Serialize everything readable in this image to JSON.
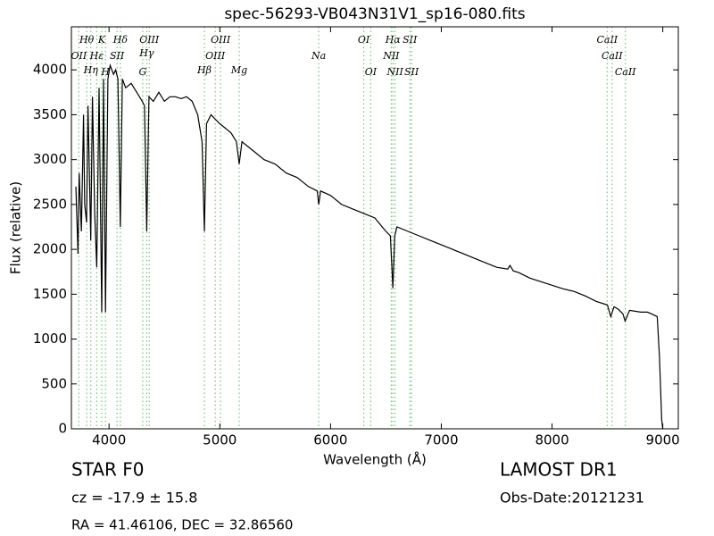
{
  "chart_data": {
    "type": "line",
    "title": "spec-56293-VB043N31V1_sp16-080.fits",
    "x_label": "Wavelength (Å)",
    "y_label": "Flux (relative)",
    "xlim": [
      3660,
      9140
    ],
    "ylim": [
      0,
      4480
    ],
    "xticks": [
      4000,
      5000,
      6000,
      7000,
      8000,
      9000
    ],
    "yticks": [
      0,
      500,
      1000,
      1500,
      2000,
      2500,
      3000,
      3500,
      4000
    ],
    "series": [
      {
        "color": "#000000",
        "x": [
          3700,
          3720,
          3730,
          3750,
          3770,
          3780,
          3797,
          3810,
          3835,
          3850,
          3870,
          3889,
          3910,
          3934,
          3950,
          3968,
          3990,
          4010,
          4040,
          4060,
          4080,
          4102,
          4120,
          4150,
          4200,
          4250,
          4300,
          4320,
          4340,
          4360,
          4400,
          4450,
          4500,
          4550,
          4600,
          4650,
          4700,
          4750,
          4800,
          4840,
          4861,
          4880,
          4920,
          4960,
          5000,
          5050,
          5100,
          5150,
          5175,
          5200,
          5300,
          5400,
          5500,
          5600,
          5700,
          5800,
          5880,
          5893,
          5910,
          6000,
          6100,
          6200,
          6300,
          6400,
          6500,
          6540,
          6563,
          6580,
          6600,
          6700,
          6800,
          6900,
          7000,
          7100,
          7200,
          7300,
          7400,
          7500,
          7600,
          7620,
          7650,
          7700,
          7800,
          7900,
          8000,
          8100,
          8200,
          8300,
          8400,
          8500,
          8530,
          8560,
          8600,
          8640,
          8660,
          8700,
          8800,
          8860,
          8900,
          8950,
          8970,
          8990,
          9000
        ],
        "values": [
          2700,
          1950,
          2850,
          2200,
          3500,
          2500,
          2300,
          3600,
          2100,
          3700,
          2400,
          1800,
          3800,
          1300,
          3900,
          1300,
          3900,
          4050,
          3950,
          4000,
          3900,
          2250,
          3900,
          3800,
          3850,
          3750,
          3650,
          3600,
          2200,
          3700,
          3650,
          3750,
          3650,
          3700,
          3700,
          3680,
          3700,
          3650,
          3500,
          3200,
          2200,
          3400,
          3500,
          3450,
          3400,
          3350,
          3300,
          3200,
          2950,
          3200,
          3100,
          3000,
          2950,
          2850,
          2800,
          2700,
          2650,
          2500,
          2650,
          2600,
          2500,
          2450,
          2400,
          2350,
          2200,
          2150,
          1570,
          2150,
          2250,
          2200,
          2150,
          2100,
          2050,
          2000,
          1950,
          1900,
          1850,
          1800,
          1780,
          1820,
          1760,
          1740,
          1680,
          1640,
          1600,
          1560,
          1530,
          1480,
          1420,
          1380,
          1250,
          1360,
          1330,
          1280,
          1200,
          1320,
          1300,
          1300,
          1280,
          1250,
          800,
          100,
          0
        ]
      }
    ],
    "line_color": "#7fbf7f",
    "spectral_lines": [
      {
        "label": "Hθ",
        "wavelength": 3798
      },
      {
        "label": "K",
        "wavelength": 3934
      },
      {
        "label": "Hδ",
        "wavelength": 4102
      },
      {
        "label": "OIII",
        "wavelength": 4363
      },
      {
        "label": "OIII",
        "wavelength": 5007
      },
      {
        "label": "OI",
        "wavelength": 6300
      },
      {
        "label": "Hα",
        "wavelength": 6563
      },
      {
        "label": "SII",
        "wavelength": 6716
      },
      {
        "label": "CaII",
        "wavelength": 8498
      },
      {
        "label": "OII",
        "wavelength": 3727
      },
      {
        "label": "Hε",
        "wavelength": 3889
      },
      {
        "label": "SII",
        "wavelength": 4072
      },
      {
        "label": "Hγ",
        "wavelength": 4340
      },
      {
        "label": "OIII",
        "wavelength": 4959
      },
      {
        "label": "Na",
        "wavelength": 5893
      },
      {
        "label": "NII",
        "wavelength": 6548
      },
      {
        "label": "CaII",
        "wavelength": 8542
      },
      {
        "label": "Hη",
        "wavelength": 3835
      },
      {
        "label": "H",
        "wavelength": 3968
      },
      {
        "label": "G",
        "wavelength": 4304
      },
      {
        "label": "Hβ",
        "wavelength": 4861
      },
      {
        "label": "Mg",
        "wavelength": 5175
      },
      {
        "label": "OI",
        "wavelength": 6363
      },
      {
        "label": "NII",
        "wavelength": 6583
      },
      {
        "label": "SII",
        "wavelength": 6731
      },
      {
        "label": "CaII",
        "wavelength": 8662
      }
    ],
    "annotations": [
      "STAR   F0",
      "LAMOST DR1",
      "cz = -17.9 ± 15.8",
      "Obs-Date:20121231",
      "RA = 41.46106, DEC = 32.86560"
    ]
  }
}
